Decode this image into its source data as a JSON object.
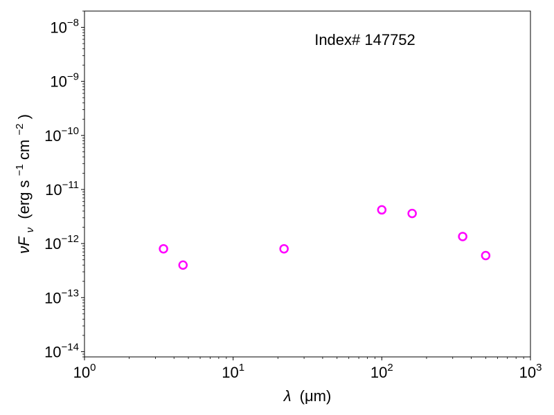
{
  "chart_data": {
    "type": "scatter",
    "annotation": "Index# 147752",
    "xlabel_symbol": "λ",
    "xlabel_unit": "(μm)",
    "ylabel_symbol": "νF",
    "ylabel_sub": "ν",
    "ylabel_unit_parts": [
      "(erg s",
      "−1",
      " cm",
      "−2",
      ")"
    ],
    "xscale": "log",
    "yscale": "log",
    "xlim": [
      1,
      1000
    ],
    "ylim": [
      8e-15,
      2e-08
    ],
    "x_ticks": [
      {
        "value": 1,
        "base": "10",
        "exp": "0"
      },
      {
        "value": 10,
        "base": "10",
        "exp": "1"
      },
      {
        "value": 100,
        "base": "10",
        "exp": "2"
      },
      {
        "value": 1000,
        "base": "10",
        "exp": "3"
      }
    ],
    "y_ticks": [
      {
        "value": 1e-14,
        "base": "10",
        "exp": "−14"
      },
      {
        "value": 1e-13,
        "base": "10",
        "exp": "−13"
      },
      {
        "value": 1e-12,
        "base": "10",
        "exp": "−12"
      },
      {
        "value": 1e-11,
        "base": "10",
        "exp": "−11"
      },
      {
        "value": 1e-10,
        "base": "10",
        "exp": "−10"
      },
      {
        "value": 1e-09,
        "base": "10",
        "exp": "−9"
      },
      {
        "value": 1e-08,
        "base": "10",
        "exp": "−8"
      }
    ],
    "grid": false,
    "series": [
      {
        "marker": "open-circle",
        "color": "#ff00ff",
        "points": [
          {
            "x": 3.4,
            "y": 8e-13
          },
          {
            "x": 4.6,
            "y": 4e-13
          },
          {
            "x": 22,
            "y": 8e-13
          },
          {
            "x": 100,
            "y": 4.2e-12
          },
          {
            "x": 160,
            "y": 3.6e-12
          },
          {
            "x": 350,
            "y": 1.35e-12
          },
          {
            "x": 500,
            "y": 6e-13
          }
        ]
      }
    ]
  }
}
